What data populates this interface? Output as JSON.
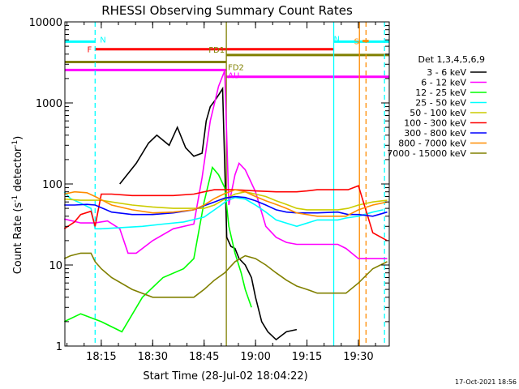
{
  "chart_data": {
    "type": "line",
    "title": "RHESSI Observing Summary Count Rates",
    "xlabel": "Start Time (28-Jul-02 18:04:22)",
    "ylabel_main": "Count Rate (s",
    "ylabel_sup1": "-1",
    "ylabel_mid": " detector",
    "ylabel_sup2": "-1",
    "ylabel_end": ")",
    "yscale": "log",
    "ylim": [
      1,
      10000
    ],
    "xlim": [
      18.073,
      19.65
    ],
    "x_ticks": [
      {
        "value": 18.25,
        "label": "18:15"
      },
      {
        "value": 18.5,
        "label": "18:30"
      },
      {
        "value": 18.75,
        "label": "18:45"
      },
      {
        "value": 19.0,
        "label": "19:00"
      },
      {
        "value": 19.25,
        "label": "19:15"
      },
      {
        "value": 19.5,
        "label": "19:30"
      }
    ],
    "y_ticks": [
      {
        "value": 1,
        "label": "1"
      },
      {
        "value": 10,
        "label": "10"
      },
      {
        "value": 100,
        "label": "100"
      },
      {
        "value": 1000,
        "label": "1000"
      },
      {
        "value": 10000,
        "label": "10000"
      }
    ],
    "legend_title": "Det 1,3,4,5,6,9",
    "legend_placement": "right",
    "series": [
      {
        "name": "3 - 6 keV",
        "color": "#000000",
        "x": [
          18.34,
          18.42,
          18.48,
          18.52,
          18.58,
          18.62,
          18.66,
          18.7,
          18.74,
          18.76,
          18.78,
          18.8,
          18.82,
          18.84,
          18.86,
          18.88,
          18.9,
          18.92,
          18.95,
          18.98,
          19.0,
          19.03,
          19.06,
          19.1,
          19.15,
          19.2
        ],
        "y": [
          100,
          180,
          320,
          400,
          300,
          500,
          280,
          220,
          240,
          600,
          900,
          1050,
          1250,
          1500,
          22,
          17,
          16,
          12,
          10,
          7,
          4,
          2,
          1.5,
          1.2,
          1.5,
          1.6
        ]
      },
      {
        "name": "6 - 12 keV",
        "color": "#ff00ff",
        "x": [
          18.07,
          18.15,
          18.22,
          18.28,
          18.34,
          18.38,
          18.42,
          18.5,
          18.6,
          18.7,
          18.74,
          18.78,
          18.82,
          18.85,
          18.87,
          18.9,
          18.92,
          18.95,
          19.0,
          19.05,
          19.1,
          19.15,
          19.2,
          19.4,
          19.44,
          19.5,
          19.57,
          19.64
        ],
        "y": [
          37,
          33,
          33,
          35,
          28,
          14,
          14,
          20,
          28,
          32,
          120,
          600,
          1600,
          2500,
          55,
          130,
          180,
          150,
          80,
          30,
          22,
          19,
          18,
          18,
          16,
          12,
          12,
          12
        ]
      },
      {
        "name": "12 - 25 keV",
        "color": "#00ff00",
        "x": [
          18.07,
          18.15,
          18.25,
          18.35,
          18.45,
          18.55,
          18.65,
          18.7,
          18.75,
          18.79,
          18.82,
          18.85,
          18.87,
          18.9,
          18.93,
          18.95,
          18.98
        ],
        "y": [
          2,
          2.5,
          2,
          1.5,
          4,
          7,
          9,
          12,
          60,
          160,
          130,
          90,
          30,
          14,
          8,
          5,
          3
        ]
      },
      {
        "name": "25 - 50 keV",
        "color": "#00ffff",
        "x": [
          18.07,
          18.1,
          18.15,
          18.2,
          18.22,
          18.25,
          18.35,
          18.45,
          18.55,
          18.65,
          18.75,
          18.82,
          18.86,
          18.9,
          18.95,
          19.0,
          19.05,
          19.1,
          19.2,
          19.3,
          19.4,
          19.44,
          19.5,
          19.57,
          19.62
        ],
        "y": [
          80,
          66,
          58,
          50,
          28,
          28,
          29,
          30,
          32,
          34,
          39,
          52,
          62,
          68,
          65,
          55,
          45,
          36,
          30,
          36,
          36,
          38,
          40,
          45,
          48
        ]
      },
      {
        "name": "50 - 100 keV",
        "color": "#cccc00",
        "x": [
          18.07,
          18.15,
          18.25,
          18.3,
          18.4,
          18.5,
          18.6,
          18.7,
          18.75,
          18.8,
          18.85,
          18.9,
          18.95,
          19.0,
          19.05,
          19.1,
          19.15,
          19.2,
          19.25,
          19.3,
          19.4,
          19.45,
          19.5,
          19.57,
          19.64
        ],
        "y": [
          65,
          63,
          63,
          60,
          55,
          52,
          50,
          50,
          50,
          55,
          65,
          75,
          80,
          75,
          70,
          62,
          56,
          50,
          48,
          48,
          48,
          50,
          55,
          60,
          63
        ]
      },
      {
        "name": "100 - 300 keV",
        "color": "#ff0000",
        "x": [
          18.07,
          18.12,
          18.15,
          18.2,
          18.22,
          18.25,
          18.3,
          18.4,
          18.5,
          18.6,
          18.7,
          18.75,
          18.8,
          18.9,
          19.0,
          19.1,
          19.2,
          19.25,
          19.3,
          19.4,
          19.45,
          19.5,
          19.57,
          19.64
        ],
        "y": [
          28,
          34,
          42,
          46,
          30,
          75,
          75,
          72,
          72,
          72,
          75,
          80,
          85,
          85,
          82,
          80,
          80,
          82,
          85,
          85,
          85,
          95,
          25,
          20
        ]
      },
      {
        "name": "300 - 800 keV",
        "color": "#0000ff",
        "x": [
          18.07,
          18.12,
          18.18,
          18.22,
          18.3,
          18.4,
          18.5,
          18.6,
          18.7,
          18.75,
          18.8,
          18.85,
          18.9,
          18.95,
          19.0,
          19.05,
          19.1,
          19.15,
          19.2,
          19.3,
          19.4,
          19.45,
          19.5,
          19.57,
          19.64
        ],
        "y": [
          55,
          55,
          56,
          55,
          45,
          42,
          42,
          44,
          48,
          54,
          60,
          67,
          70,
          68,
          62,
          55,
          48,
          45,
          44,
          44,
          45,
          42,
          42,
          40,
          45
        ]
      },
      {
        "name": "800 - 7000 keV",
        "color": "#ff8c00",
        "x": [
          18.07,
          18.12,
          18.18,
          18.22,
          18.3,
          18.4,
          18.5,
          18.6,
          18.7,
          18.75,
          18.8,
          18.85,
          18.9,
          18.95,
          19.0,
          19.05,
          19.1,
          19.15,
          19.2,
          19.3,
          19.4,
          19.44,
          19.5,
          19.57,
          19.64
        ],
        "y": [
          75,
          80,
          78,
          70,
          55,
          48,
          44,
          45,
          48,
          55,
          66,
          76,
          85,
          80,
          70,
          62,
          56,
          50,
          44,
          40,
          40,
          40,
          48,
          55,
          60
        ]
      },
      {
        "name": "7000 - 15000 keV",
        "color": "#808000",
        "x": [
          18.07,
          18.1,
          18.15,
          18.2,
          18.22,
          18.25,
          18.3,
          18.4,
          18.5,
          18.6,
          18.7,
          18.75,
          18.8,
          18.85,
          18.9,
          18.95,
          19.0,
          19.05,
          19.1,
          19.15,
          19.2,
          19.25,
          19.3,
          19.4,
          19.44,
          19.5,
          19.57,
          19.64
        ],
        "y": [
          12,
          13,
          14,
          14,
          11,
          9,
          7,
          5,
          4,
          4,
          4,
          5,
          6.5,
          8,
          11,
          13,
          12,
          10,
          8,
          6.5,
          5.5,
          5,
          4.5,
          4.5,
          4.5,
          6,
          9,
          11
        ]
      }
    ],
    "flags": [
      {
        "label": "N",
        "color": "#00ffff",
        "y": 5700,
        "x0": 18.073,
        "x1": 18.22,
        "label_side": "right"
      },
      {
        "label": "N",
        "color": "#00ffff",
        "y": 5700,
        "x0": 19.38,
        "x1": 19.65,
        "label_side": "none"
      },
      {
        "label": "F",
        "color": "#ff0000",
        "y": 4600,
        "x0": 18.22,
        "x1": 19.38,
        "label_side": "left"
      },
      {
        "label": "FD1",
        "color": "#808000",
        "y": 3900,
        "x0": 18.858,
        "x1": 19.65,
        "label_side": "above-left"
      },
      {
        "label": "FD2",
        "color": "#808000",
        "y": 3200,
        "x0": 18.073,
        "x1": 18.858,
        "label_side": "below-right"
      },
      {
        "label": "AU",
        "color": "#ff00ff",
        "y": 2550,
        "x0": 18.073,
        "x1": 18.858,
        "label_side": "below-right"
      },
      {
        "label": "",
        "color": "#ff00ff",
        "y": 2100,
        "x0": 18.858,
        "x1": 19.65,
        "label_side": "none"
      },
      {
        "label": "S",
        "color": "#ff8c00",
        "y": 5800,
        "x0": 19.52,
        "x1": 19.55,
        "label_side": "left"
      }
    ],
    "vlines": [
      {
        "x": 18.22,
        "color": "#00ffff",
        "style": "dashed"
      },
      {
        "x": 18.858,
        "color": "#808000",
        "style": "solid"
      },
      {
        "x": 19.38,
        "color": "#00ffff",
        "style": "solid"
      },
      {
        "x": 19.505,
        "color": "#ff8c00",
        "style": "solid"
      },
      {
        "x": 19.537,
        "color": "#ff8c00",
        "style": "dashed"
      },
      {
        "x": 19.627,
        "color": "#00ffff",
        "style": "dashed"
      }
    ],
    "grid": false,
    "footer_timestamp": "17-Oct-2021 18:56"
  }
}
